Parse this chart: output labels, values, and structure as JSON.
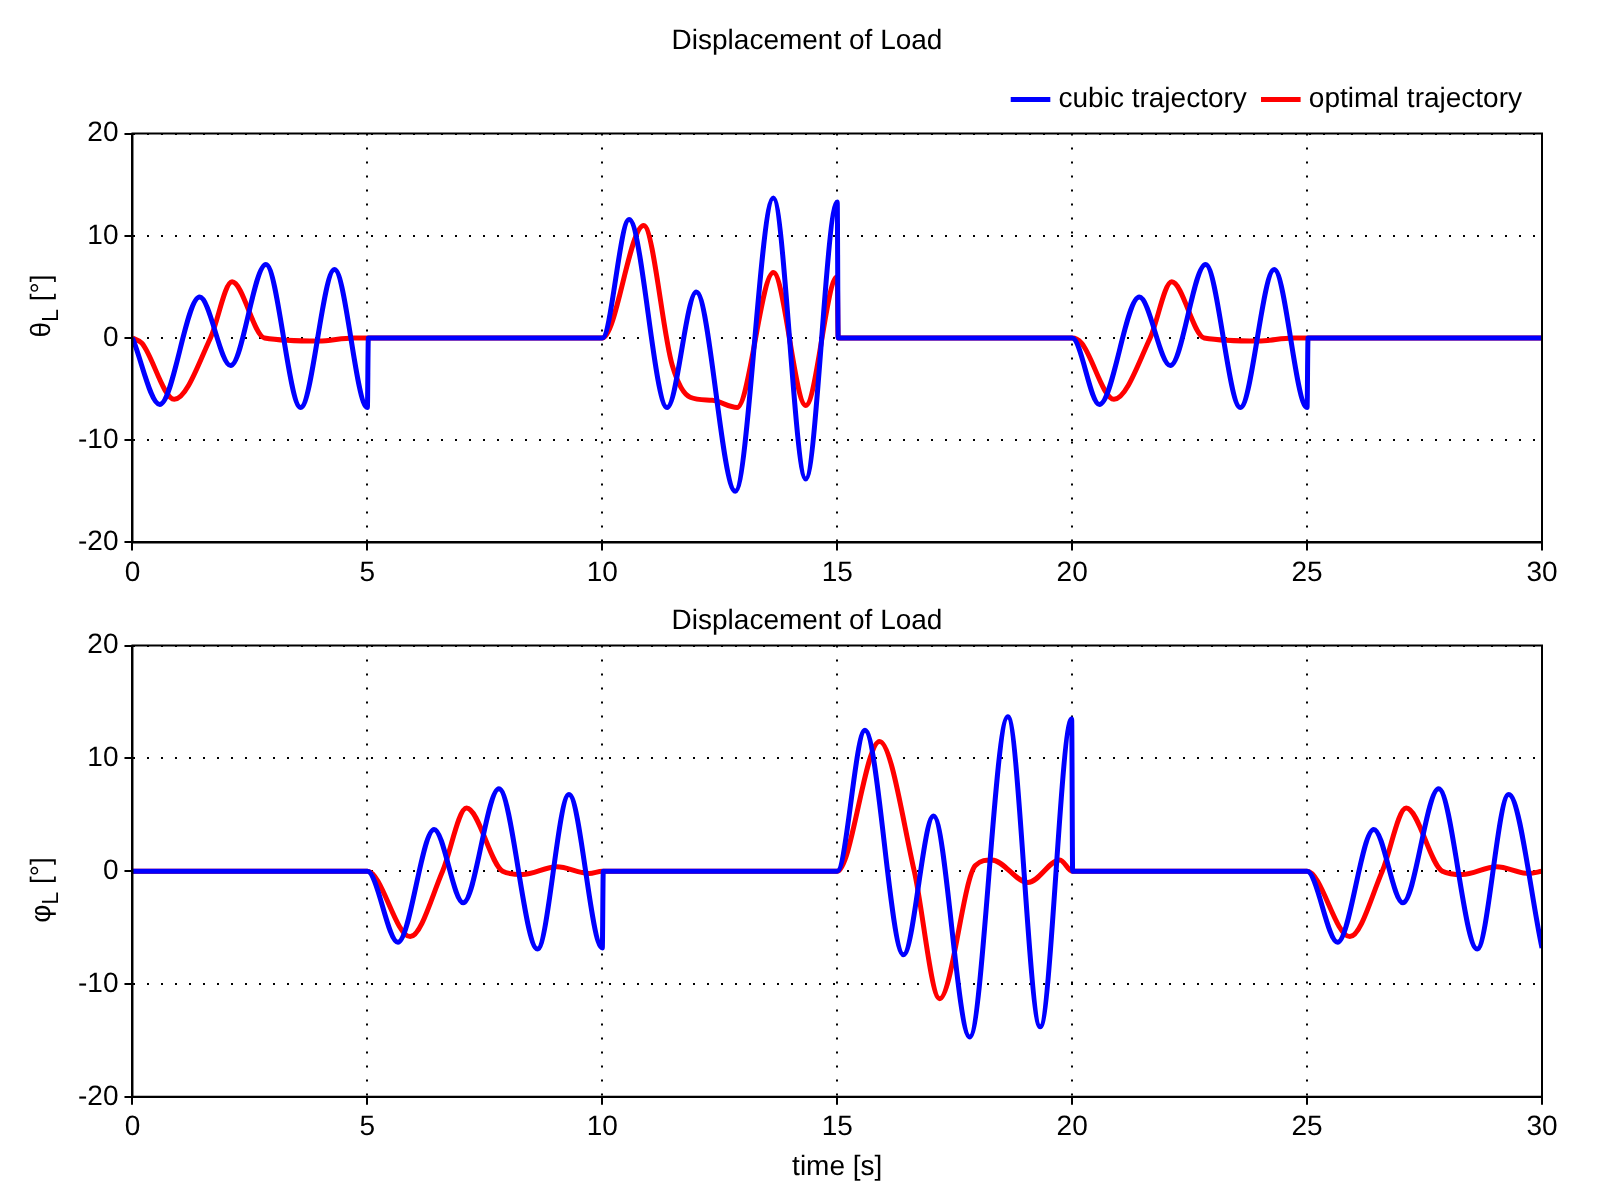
{
  "chart_data": [
    {
      "type": "line",
      "title": "Displacement of Load",
      "ylabel": "θ$_{L}$ [°]",
      "xlim": [
        0,
        30
      ],
      "xticks": [
        0,
        5,
        10,
        15,
        20,
        25,
        30
      ],
      "ylim": [
        -20,
        20
      ],
      "yticks": [
        -20,
        -10,
        0,
        10,
        20
      ],
      "grid": true,
      "legend": "top right",
      "series": [
        {
          "name": "cubic trajectory",
          "color": "#0000ff",
          "x": [
            0,
            0.58,
            1.43,
            2.09,
            2.84,
            3.58,
            4.3,
            5.0,
            5.02,
            10.0,
            10.57,
            11.38,
            12.0,
            12.83,
            13.64,
            14.33,
            15.0,
            15.02,
            20.0,
            20.58,
            21.43,
            22.09,
            22.84,
            23.58,
            24.3,
            25.0,
            25.02,
            30
          ],
          "values": [
            0,
            -6.5,
            4.0,
            -2.7,
            7.2,
            -6.8,
            6.7,
            -6.8,
            0,
            0,
            11.6,
            -6.8,
            4.5,
            -15.0,
            13.7,
            -13.8,
            13.3,
            0,
            0,
            -6.5,
            4.0,
            -2.7,
            7.2,
            -6.8,
            6.7,
            -6.8,
            0,
            0
          ]
        },
        {
          "name": "optimal trajectory",
          "color": "#ff0000",
          "x": [
            0,
            0.2,
            0.89,
            1.66,
            2.12,
            2.81,
            3.96,
            4.7,
            10.0,
            10.88,
            11.49,
            11.87,
            12.34,
            12.87,
            13.64,
            14.33,
            15.0,
            15.02,
            20.0,
            20.2,
            20.89,
            21.66,
            22.12,
            22.81,
            23.96,
            24.7,
            30
          ],
          "values": [
            0,
            -0.5,
            -6.0,
            0,
            5.5,
            0,
            -0.3,
            0,
            0,
            11.0,
            -2.7,
            -5.8,
            -6.1,
            -6.8,
            6.4,
            -6.6,
            6.0,
            0,
            0,
            -0.5,
            -6.0,
            0,
            5.5,
            0,
            -0.3,
            0,
            0
          ]
        }
      ]
    },
    {
      "type": "line",
      "title": "Displacement of Load",
      "xlabel": "time [s]",
      "ylabel": "φ$_{L}$ [°]",
      "xlim": [
        0,
        30
      ],
      "xticks": [
        0,
        5,
        10,
        15,
        20,
        25,
        30
      ],
      "ylim": [
        -20,
        20
      ],
      "yticks": [
        -20,
        -10,
        0,
        10,
        20
      ],
      "grid": true,
      "series": [
        {
          "color": "#0000ff",
          "x": [
            0,
            5.0,
            5.65,
            6.42,
            7.04,
            7.8,
            8.62,
            9.29,
            10.0,
            10.02,
            15.0,
            15.59,
            16.41,
            17.05,
            17.82,
            18.63,
            19.32,
            19.99,
            20.01,
            25.0,
            25.65,
            26.42,
            27.04,
            27.8,
            28.62,
            29.29,
            30
          ],
          "values": [
            0,
            0,
            -6.3,
            3.7,
            -2.8,
            7.3,
            -6.9,
            6.8,
            -6.8,
            0,
            0,
            12.5,
            -7.4,
            4.9,
            -14.7,
            13.7,
            -13.8,
            13.5,
            0,
            0,
            -6.3,
            3.7,
            -2.8,
            7.3,
            -6.9,
            6.8,
            -6.8
          ]
        },
        {
          "color": "#ff0000",
          "x": [
            0,
            5.0,
            5.91,
            6.6,
            7.11,
            7.88,
            8.3,
            9.03,
            9.72,
            10.0,
            15.0,
            15.9,
            16.64,
            17.18,
            17.94,
            18.29,
            19.06,
            19.74,
            20.0,
            25.0,
            25.91,
            26.6,
            27.11,
            27.88,
            28.3,
            29.03,
            29.72,
            30
          ],
          "values": [
            0,
            0,
            -5.8,
            0,
            5.6,
            0,
            -0.3,
            0.4,
            -0.2,
            0,
            0,
            11.5,
            0,
            -11.3,
            0.5,
            1.0,
            -1.0,
            1.0,
            0,
            0,
            -5.8,
            0,
            5.6,
            0,
            -0.3,
            0.4,
            -0.2,
            0
          ]
        }
      ]
    }
  ]
}
